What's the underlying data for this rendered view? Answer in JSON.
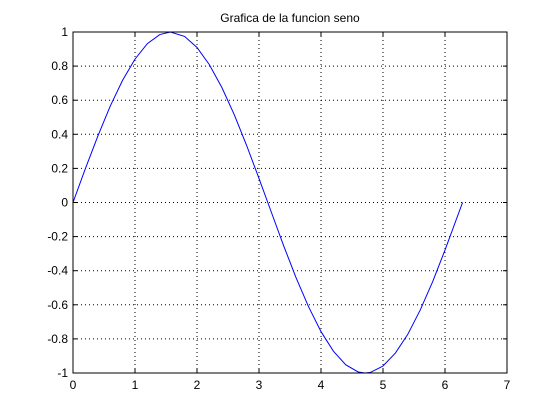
{
  "chart_data": {
    "type": "line",
    "title": "Grafica de la funcion seno",
    "xlabel": "",
    "ylabel": "",
    "xlim": [
      0,
      7
    ],
    "ylim": [
      -1,
      1
    ],
    "xticks": [
      0,
      1,
      2,
      3,
      4,
      5,
      6,
      7
    ],
    "xtick_labels": [
      "0",
      "1",
      "2",
      "3",
      "4",
      "5",
      "6",
      "7"
    ],
    "yticks": [
      -1,
      -0.8,
      -0.6,
      -0.4,
      -0.2,
      0,
      0.2,
      0.4,
      0.6,
      0.8,
      1
    ],
    "ytick_labels": [
      "-1",
      "-0.8",
      "-0.6",
      "-0.4",
      "-0.2",
      "0",
      "0.2",
      "0.4",
      "0.6",
      "0.8",
      "1"
    ],
    "grid": true,
    "grid_style": "dotted",
    "series": [
      {
        "color": "#0000ff",
        "x": [
          0,
          0.2,
          0.4,
          0.6,
          0.8,
          1.0,
          1.2,
          1.4,
          1.571,
          1.8,
          2.0,
          2.2,
          2.4,
          2.6,
          2.8,
          3.0,
          3.1416,
          3.2,
          3.4,
          3.6,
          3.8,
          4.0,
          4.2,
          4.4,
          4.6,
          4.712,
          4.8,
          5.0,
          5.2,
          5.4,
          5.6,
          5.8,
          6.0,
          6.2832
        ],
        "y": [
          0,
          0.199,
          0.389,
          0.565,
          0.717,
          0.841,
          0.932,
          0.985,
          1.0,
          0.974,
          0.909,
          0.808,
          0.675,
          0.516,
          0.335,
          0.141,
          0.0,
          -0.058,
          -0.256,
          -0.443,
          -0.612,
          -0.757,
          -0.872,
          -0.952,
          -0.994,
          -1.0,
          -0.996,
          -0.959,
          -0.883,
          -0.773,
          -0.631,
          -0.465,
          -0.279,
          0.0
        ]
      }
    ]
  }
}
